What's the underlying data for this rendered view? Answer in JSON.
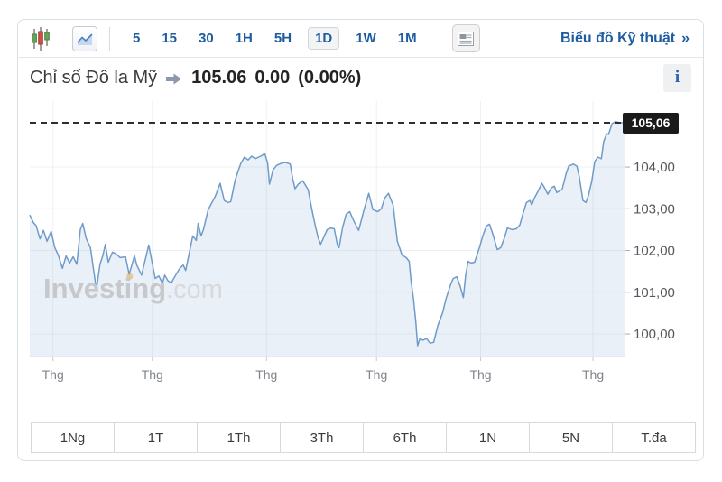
{
  "toolbar": {
    "candlestick_icon": "candlestick-chart-icon",
    "line_chart_icon": "line-chart-icon",
    "news_icon": "news-panel-icon",
    "intervals": [
      {
        "label": "5",
        "selected": false
      },
      {
        "label": "15",
        "selected": false
      },
      {
        "label": "30",
        "selected": false
      },
      {
        "label": "1H",
        "selected": false
      },
      {
        "label": "5H",
        "selected": false
      },
      {
        "label": "1D",
        "selected": true
      },
      {
        "label": "1W",
        "selected": false
      },
      {
        "label": "1M",
        "selected": false
      }
    ],
    "technical_link": "Biểu đồ Kỹ thuật",
    "technical_link_arrow": "»"
  },
  "header": {
    "instrument": "Chỉ số Đô la Mỹ",
    "last": "105.06",
    "change": "0.00",
    "change_pct": "(0.00%)",
    "info_icon": "i"
  },
  "watermark": {
    "bold": "Investing",
    "light": ".com"
  },
  "ranges": [
    "1Ng",
    "1T",
    "1Th",
    "3Th",
    "6Th",
    "1N",
    "5N",
    "T.đa"
  ],
  "chart_data": {
    "type": "area",
    "title": "Chỉ số Đô la Mỹ (US Dollar Index), 1D",
    "ylabel": "",
    "xlabel": "",
    "ylim": [
      99.46,
      105.58
    ],
    "grid": true,
    "legend": false,
    "line_color": "#6f9bc9",
    "fill_color": "rgba(111,156,203,0.15)",
    "last_value": 105.06,
    "last_value_label": "105,06",
    "dashed_line_value": 105.06,
    "yticks": [
      {
        "value": 104,
        "label": "104,00"
      },
      {
        "value": 103,
        "label": "103,00"
      },
      {
        "value": 102,
        "label": "102,00"
      },
      {
        "value": 101,
        "label": "101,00"
      },
      {
        "value": 100,
        "label": "100,00"
      }
    ],
    "xticks": [
      {
        "x01": 0.039,
        "label": "Thg"
      },
      {
        "x01": 0.206,
        "label": "Thg"
      },
      {
        "x01": 0.398,
        "label": "Thg"
      },
      {
        "x01": 0.583,
        "label": "Thg"
      },
      {
        "x01": 0.758,
        "label": "Thg"
      },
      {
        "x01": 0.947,
        "label": "Thg"
      }
    ],
    "event_marker": {
      "x01": 0.168,
      "value": 101.38,
      "color": "#dfa23f"
    },
    "points": [
      [
        0.0,
        102.85
      ],
      [
        0.006,
        102.67
      ],
      [
        0.011,
        102.59
      ],
      [
        0.017,
        102.28
      ],
      [
        0.023,
        102.48
      ],
      [
        0.029,
        102.22
      ],
      [
        0.036,
        102.46
      ],
      [
        0.042,
        102.07
      ],
      [
        0.048,
        101.89
      ],
      [
        0.055,
        101.57
      ],
      [
        0.061,
        101.87
      ],
      [
        0.067,
        101.7
      ],
      [
        0.073,
        101.85
      ],
      [
        0.079,
        101.67
      ],
      [
        0.085,
        102.5
      ],
      [
        0.089,
        102.65
      ],
      [
        0.095,
        102.28
      ],
      [
        0.102,
        102.07
      ],
      [
        0.108,
        101.46
      ],
      [
        0.112,
        101.07
      ],
      [
        0.118,
        101.67
      ],
      [
        0.123,
        101.89
      ],
      [
        0.127,
        102.15
      ],
      [
        0.132,
        101.72
      ],
      [
        0.139,
        101.96
      ],
      [
        0.144,
        101.93
      ],
      [
        0.152,
        101.83
      ],
      [
        0.161,
        101.85
      ],
      [
        0.167,
        101.43
      ],
      [
        0.176,
        101.87
      ],
      [
        0.18,
        101.65
      ],
      [
        0.188,
        101.41
      ],
      [
        0.2,
        102.13
      ],
      [
        0.211,
        101.33
      ],
      [
        0.217,
        101.39
      ],
      [
        0.223,
        101.22
      ],
      [
        0.227,
        101.41
      ],
      [
        0.232,
        101.28
      ],
      [
        0.238,
        101.22
      ],
      [
        0.242,
        101.33
      ],
      [
        0.252,
        101.57
      ],
      [
        0.258,
        101.65
      ],
      [
        0.262,
        101.52
      ],
      [
        0.274,
        102.35
      ],
      [
        0.28,
        102.24
      ],
      [
        0.283,
        102.65
      ],
      [
        0.288,
        102.35
      ],
      [
        0.292,
        102.5
      ],
      [
        0.3,
        102.98
      ],
      [
        0.312,
        103.3
      ],
      [
        0.32,
        103.61
      ],
      [
        0.327,
        103.2
      ],
      [
        0.333,
        103.15
      ],
      [
        0.338,
        103.17
      ],
      [
        0.345,
        103.67
      ],
      [
        0.35,
        103.89
      ],
      [
        0.355,
        104.09
      ],
      [
        0.361,
        104.24
      ],
      [
        0.367,
        104.17
      ],
      [
        0.373,
        104.26
      ],
      [
        0.379,
        104.2
      ],
      [
        0.385,
        104.24
      ],
      [
        0.391,
        104.28
      ],
      [
        0.395,
        104.33
      ],
      [
        0.4,
        104.09
      ],
      [
        0.403,
        103.59
      ],
      [
        0.409,
        103.93
      ],
      [
        0.415,
        104.04
      ],
      [
        0.423,
        104.09
      ],
      [
        0.43,
        104.11
      ],
      [
        0.438,
        104.07
      ],
      [
        0.442,
        103.72
      ],
      [
        0.446,
        103.48
      ],
      [
        0.452,
        103.6
      ],
      [
        0.459,
        103.67
      ],
      [
        0.468,
        103.46
      ],
      [
        0.474,
        103.0
      ],
      [
        0.48,
        102.6
      ],
      [
        0.485,
        102.3
      ],
      [
        0.489,
        102.15
      ],
      [
        0.5,
        102.5
      ],
      [
        0.506,
        102.54
      ],
      [
        0.512,
        102.52
      ],
      [
        0.517,
        102.15
      ],
      [
        0.52,
        102.07
      ],
      [
        0.526,
        102.55
      ],
      [
        0.532,
        102.87
      ],
      [
        0.538,
        102.93
      ],
      [
        0.545,
        102.7
      ],
      [
        0.553,
        102.48
      ],
      [
        0.562,
        102.98
      ],
      [
        0.57,
        103.37
      ],
      [
        0.577,
        102.98
      ],
      [
        0.585,
        102.93
      ],
      [
        0.591,
        103.0
      ],
      [
        0.597,
        103.26
      ],
      [
        0.603,
        103.37
      ],
      [
        0.611,
        103.09
      ],
      [
        0.618,
        102.22
      ],
      [
        0.626,
        101.89
      ],
      [
        0.633,
        101.83
      ],
      [
        0.638,
        101.74
      ],
      [
        0.641,
        101.28
      ],
      [
        0.645,
        100.85
      ],
      [
        0.649,
        100.3
      ],
      [
        0.652,
        99.72
      ],
      [
        0.656,
        99.89
      ],
      [
        0.661,
        99.85
      ],
      [
        0.667,
        99.89
      ],
      [
        0.673,
        99.78
      ],
      [
        0.679,
        99.8
      ],
      [
        0.686,
        100.2
      ],
      [
        0.694,
        100.5
      ],
      [
        0.7,
        100.85
      ],
      [
        0.708,
        101.2
      ],
      [
        0.712,
        101.33
      ],
      [
        0.718,
        101.37
      ],
      [
        0.724,
        101.13
      ],
      [
        0.729,
        100.87
      ],
      [
        0.733,
        101.41
      ],
      [
        0.737,
        101.74
      ],
      [
        0.742,
        101.7
      ],
      [
        0.748,
        101.72
      ],
      [
        0.756,
        102.07
      ],
      [
        0.762,
        102.37
      ],
      [
        0.768,
        102.59
      ],
      [
        0.773,
        102.63
      ],
      [
        0.779,
        102.37
      ],
      [
        0.786,
        102.02
      ],
      [
        0.792,
        102.07
      ],
      [
        0.798,
        102.3
      ],
      [
        0.803,
        102.54
      ],
      [
        0.811,
        102.5
      ],
      [
        0.818,
        102.52
      ],
      [
        0.824,
        102.61
      ],
      [
        0.829,
        102.87
      ],
      [
        0.835,
        103.15
      ],
      [
        0.841,
        103.2
      ],
      [
        0.844,
        103.09
      ],
      [
        0.848,
        103.24
      ],
      [
        0.856,
        103.46
      ],
      [
        0.861,
        103.61
      ],
      [
        0.865,
        103.52
      ],
      [
        0.871,
        103.35
      ],
      [
        0.877,
        103.5
      ],
      [
        0.882,
        103.54
      ],
      [
        0.886,
        103.39
      ],
      [
        0.891,
        103.43
      ],
      [
        0.895,
        103.46
      ],
      [
        0.902,
        103.85
      ],
      [
        0.906,
        104.02
      ],
      [
        0.914,
        104.07
      ],
      [
        0.92,
        104.02
      ],
      [
        0.924,
        103.76
      ],
      [
        0.93,
        103.2
      ],
      [
        0.935,
        103.15
      ],
      [
        0.939,
        103.3
      ],
      [
        0.945,
        103.67
      ],
      [
        0.95,
        104.13
      ],
      [
        0.955,
        104.24
      ],
      [
        0.961,
        104.2
      ],
      [
        0.965,
        104.61
      ],
      [
        0.97,
        104.8
      ],
      [
        0.973,
        104.78
      ],
      [
        0.979,
        105.04
      ],
      [
        0.985,
        105.09
      ],
      [
        0.992,
        105.06
      ],
      [
        1.0,
        105.06
      ]
    ]
  }
}
